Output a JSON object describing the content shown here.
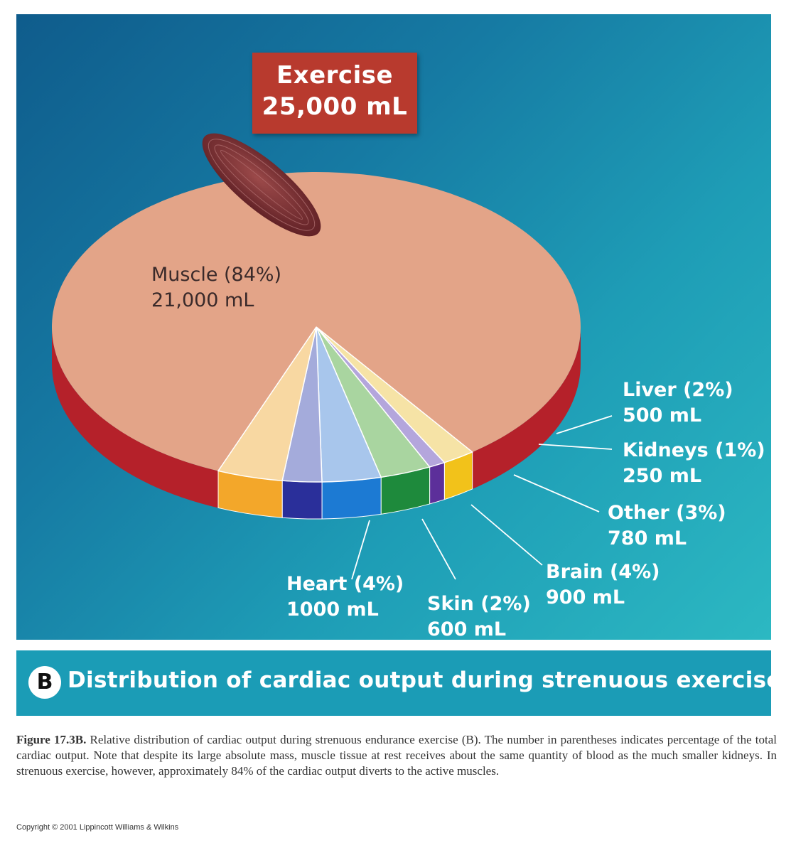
{
  "title": {
    "line1": "Exercise",
    "line2": "25,000 mL"
  },
  "chart_data": {
    "type": "pie",
    "total_ml": 25000,
    "slices": [
      {
        "label": "Muscle (84%)",
        "value_label": "21,000 mL",
        "percent": 84,
        "ml": 21000,
        "color": "#e3a488",
        "side": "#b5212a"
      },
      {
        "label": "Liver (2%)",
        "value_label": "500 mL",
        "percent": 2,
        "ml": 500,
        "color": "#f6e3a6",
        "side": "#f2c21a"
      },
      {
        "label": "Kidneys (1%)",
        "value_label": "250 mL",
        "percent": 1,
        "ml": 250,
        "color": "#b4a6dc",
        "side": "#5c2f9a"
      },
      {
        "label": "Other (3%)",
        "value_label": "780 mL",
        "percent": 3,
        "ml": 780,
        "color": "#a9d5a0",
        "side": "#1e8a3c"
      },
      {
        "label": "Brain (4%)",
        "value_label": "900 mL",
        "percent": 4,
        "ml": 900,
        "color": "#a8c6ec",
        "side": "#1c7ad3"
      },
      {
        "label": "Skin (2%)",
        "value_label": "600 mL",
        "percent": 2,
        "ml": 600,
        "color": "#a4abdb",
        "side": "#2a2f9a"
      },
      {
        "label": "Heart (4%)",
        "value_label": "1000 mL",
        "percent": 4,
        "ml": 1000,
        "color": "#f8d8a2",
        "side": "#f3a72a"
      }
    ]
  },
  "caption": {
    "badge": "B",
    "text": "Distribution of cardiac output during strenuous exercise"
  },
  "figure_note": {
    "label": "Figure 17.3B.",
    "text": " Relative distribution of cardiac output during strenuous endurance exercise (B). The number in parentheses indicates percentage of the total cardiac output. Note that despite its large absolute mass, muscle tissue at rest receives about the same quantity of blood as the much smaller kidneys. In strenuous exercise, however, approximately 84% of the cardiac output diverts to the active muscles."
  },
  "copyright": "Copyright © 2001 Lippincott Williams & Wilkins"
}
